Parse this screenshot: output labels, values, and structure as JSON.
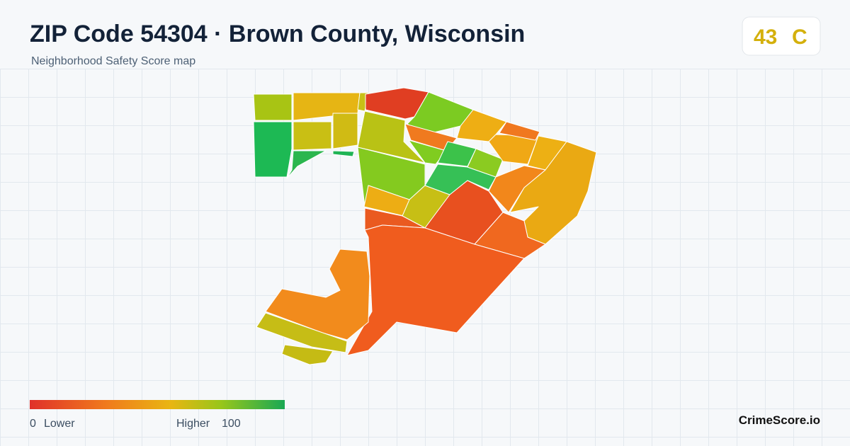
{
  "header": {
    "title": "ZIP Code 54304 · Brown County, Wisconsin",
    "subtitle": "Neighborhood Safety Score map"
  },
  "score": {
    "value": 43,
    "grade": "C"
  },
  "legend": {
    "min": 0,
    "min_label": "Lower",
    "max_label": "Higher",
    "max": 100
  },
  "brand": "CrimeScore.io"
}
